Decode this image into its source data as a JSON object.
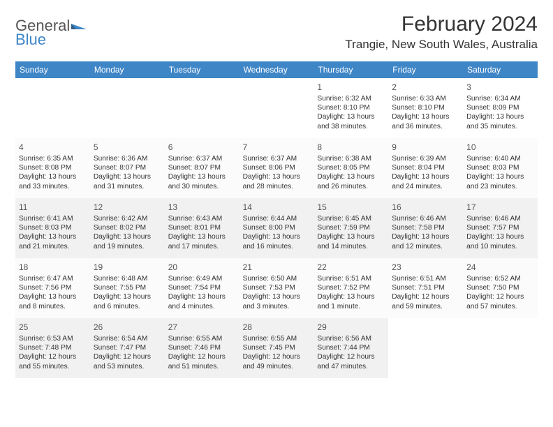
{
  "logo": {
    "part1": "General",
    "part2": "Blue"
  },
  "title": "February 2024",
  "location": "Trangie, New South Wales, Australia",
  "colors": {
    "brand_gray": "#555555",
    "brand_blue": "#3f86c7",
    "header_bg": "#3f86c7",
    "header_fg": "#ffffff",
    "alt_row_bg": "#f3f3f3",
    "rule": "#3f86c7"
  },
  "fonts": {
    "title_size_pt": 22,
    "location_size_pt": 13,
    "dow_size_pt": 9,
    "date_size_pt": 9,
    "body_size_pt": 8
  },
  "daysOfWeek": [
    "Sunday",
    "Monday",
    "Tuesday",
    "Wednesday",
    "Thursday",
    "Friday",
    "Saturday"
  ],
  "weeks": [
    [
      {},
      {},
      {},
      {},
      {
        "date": "1",
        "sunrise": "Sunrise: 6:32 AM",
        "sunset": "Sunset: 8:10 PM",
        "daylight1": "Daylight: 13 hours",
        "daylight2": "and 38 minutes."
      },
      {
        "date": "2",
        "sunrise": "Sunrise: 6:33 AM",
        "sunset": "Sunset: 8:10 PM",
        "daylight1": "Daylight: 13 hours",
        "daylight2": "and 36 minutes."
      },
      {
        "date": "3",
        "sunrise": "Sunrise: 6:34 AM",
        "sunset": "Sunset: 8:09 PM",
        "daylight1": "Daylight: 13 hours",
        "daylight2": "and 35 minutes."
      }
    ],
    [
      {
        "date": "4",
        "sunrise": "Sunrise: 6:35 AM",
        "sunset": "Sunset: 8:08 PM",
        "daylight1": "Daylight: 13 hours",
        "daylight2": "and 33 minutes."
      },
      {
        "date": "5",
        "sunrise": "Sunrise: 6:36 AM",
        "sunset": "Sunset: 8:07 PM",
        "daylight1": "Daylight: 13 hours",
        "daylight2": "and 31 minutes."
      },
      {
        "date": "6",
        "sunrise": "Sunrise: 6:37 AM",
        "sunset": "Sunset: 8:07 PM",
        "daylight1": "Daylight: 13 hours",
        "daylight2": "and 30 minutes."
      },
      {
        "date": "7",
        "sunrise": "Sunrise: 6:37 AM",
        "sunset": "Sunset: 8:06 PM",
        "daylight1": "Daylight: 13 hours",
        "daylight2": "and 28 minutes."
      },
      {
        "date": "8",
        "sunrise": "Sunrise: 6:38 AM",
        "sunset": "Sunset: 8:05 PM",
        "daylight1": "Daylight: 13 hours",
        "daylight2": "and 26 minutes."
      },
      {
        "date": "9",
        "sunrise": "Sunrise: 6:39 AM",
        "sunset": "Sunset: 8:04 PM",
        "daylight1": "Daylight: 13 hours",
        "daylight2": "and 24 minutes."
      },
      {
        "date": "10",
        "sunrise": "Sunrise: 6:40 AM",
        "sunset": "Sunset: 8:03 PM",
        "daylight1": "Daylight: 13 hours",
        "daylight2": "and 23 minutes."
      }
    ],
    [
      {
        "date": "11",
        "sunrise": "Sunrise: 6:41 AM",
        "sunset": "Sunset: 8:03 PM",
        "daylight1": "Daylight: 13 hours",
        "daylight2": "and 21 minutes."
      },
      {
        "date": "12",
        "sunrise": "Sunrise: 6:42 AM",
        "sunset": "Sunset: 8:02 PM",
        "daylight1": "Daylight: 13 hours",
        "daylight2": "and 19 minutes."
      },
      {
        "date": "13",
        "sunrise": "Sunrise: 6:43 AM",
        "sunset": "Sunset: 8:01 PM",
        "daylight1": "Daylight: 13 hours",
        "daylight2": "and 17 minutes."
      },
      {
        "date": "14",
        "sunrise": "Sunrise: 6:44 AM",
        "sunset": "Sunset: 8:00 PM",
        "daylight1": "Daylight: 13 hours",
        "daylight2": "and 16 minutes."
      },
      {
        "date": "15",
        "sunrise": "Sunrise: 6:45 AM",
        "sunset": "Sunset: 7:59 PM",
        "daylight1": "Daylight: 13 hours",
        "daylight2": "and 14 minutes."
      },
      {
        "date": "16",
        "sunrise": "Sunrise: 6:46 AM",
        "sunset": "Sunset: 7:58 PM",
        "daylight1": "Daylight: 13 hours",
        "daylight2": "and 12 minutes."
      },
      {
        "date": "17",
        "sunrise": "Sunrise: 6:46 AM",
        "sunset": "Sunset: 7:57 PM",
        "daylight1": "Daylight: 13 hours",
        "daylight2": "and 10 minutes."
      }
    ],
    [
      {
        "date": "18",
        "sunrise": "Sunrise: 6:47 AM",
        "sunset": "Sunset: 7:56 PM",
        "daylight1": "Daylight: 13 hours",
        "daylight2": "and 8 minutes."
      },
      {
        "date": "19",
        "sunrise": "Sunrise: 6:48 AM",
        "sunset": "Sunset: 7:55 PM",
        "daylight1": "Daylight: 13 hours",
        "daylight2": "and 6 minutes."
      },
      {
        "date": "20",
        "sunrise": "Sunrise: 6:49 AM",
        "sunset": "Sunset: 7:54 PM",
        "daylight1": "Daylight: 13 hours",
        "daylight2": "and 4 minutes."
      },
      {
        "date": "21",
        "sunrise": "Sunrise: 6:50 AM",
        "sunset": "Sunset: 7:53 PM",
        "daylight1": "Daylight: 13 hours",
        "daylight2": "and 3 minutes."
      },
      {
        "date": "22",
        "sunrise": "Sunrise: 6:51 AM",
        "sunset": "Sunset: 7:52 PM",
        "daylight1": "Daylight: 13 hours",
        "daylight2": "and 1 minute."
      },
      {
        "date": "23",
        "sunrise": "Sunrise: 6:51 AM",
        "sunset": "Sunset: 7:51 PM",
        "daylight1": "Daylight: 12 hours",
        "daylight2": "and 59 minutes."
      },
      {
        "date": "24",
        "sunrise": "Sunrise: 6:52 AM",
        "sunset": "Sunset: 7:50 PM",
        "daylight1": "Daylight: 12 hours",
        "daylight2": "and 57 minutes."
      }
    ],
    [
      {
        "date": "25",
        "sunrise": "Sunrise: 6:53 AM",
        "sunset": "Sunset: 7:48 PM",
        "daylight1": "Daylight: 12 hours",
        "daylight2": "and 55 minutes."
      },
      {
        "date": "26",
        "sunrise": "Sunrise: 6:54 AM",
        "sunset": "Sunset: 7:47 PM",
        "daylight1": "Daylight: 12 hours",
        "daylight2": "and 53 minutes."
      },
      {
        "date": "27",
        "sunrise": "Sunrise: 6:55 AM",
        "sunset": "Sunset: 7:46 PM",
        "daylight1": "Daylight: 12 hours",
        "daylight2": "and 51 minutes."
      },
      {
        "date": "28",
        "sunrise": "Sunrise: 6:55 AM",
        "sunset": "Sunset: 7:45 PM",
        "daylight1": "Daylight: 12 hours",
        "daylight2": "and 49 minutes."
      },
      {
        "date": "29",
        "sunrise": "Sunrise: 6:56 AM",
        "sunset": "Sunset: 7:44 PM",
        "daylight1": "Daylight: 12 hours",
        "daylight2": "and 47 minutes."
      },
      {},
      {}
    ]
  ]
}
